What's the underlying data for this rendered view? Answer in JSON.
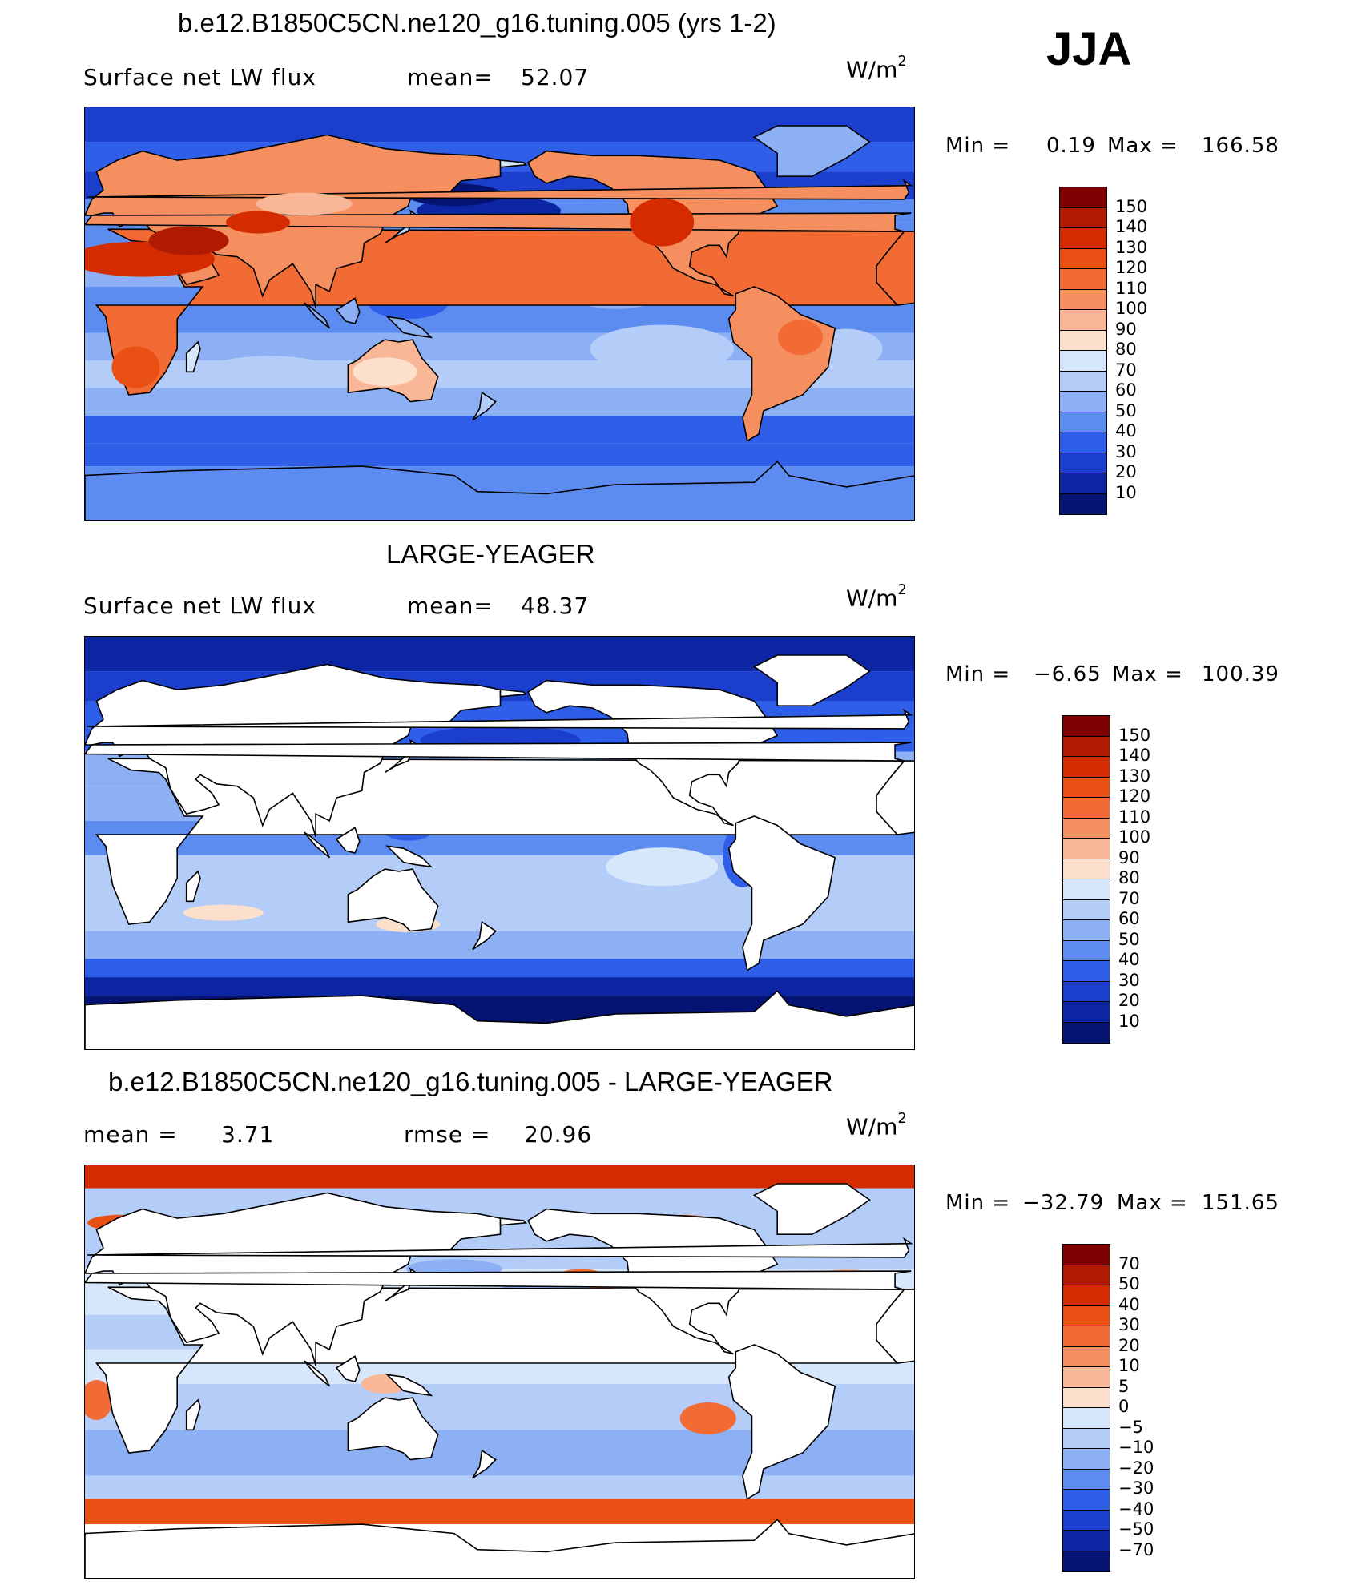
{
  "season": "JJA",
  "panels": [
    {
      "id": "panel-model",
      "title": "b.e12.B1850C5CN.ne120_g16.tuning.005 (yrs 1-2)",
      "left_label": "Surface net LW flux",
      "mid_label": "mean=",
      "mid_value": "52.07",
      "units_main": "W/m",
      "units_exp": "2",
      "min_label": "Min =",
      "min_value": "0.19",
      "max_label": "Max =",
      "max_value": "166.58",
      "land_fill": "data",
      "colorbar": {
        "labels": [
          "150",
          "140",
          "130",
          "120",
          "110",
          "100",
          "90",
          "80",
          "70",
          "60",
          "50",
          "40",
          "30",
          "20",
          "10"
        ],
        "colors": [
          "#7f0000",
          "#b01a00",
          "#d42c00",
          "#ea4f14",
          "#f26b34",
          "#f58f60",
          "#f9b797",
          "#fde0cc",
          "#d6e7fb",
          "#b3cdf8",
          "#8cb0f3",
          "#5c8cf0",
          "#2f5ee8",
          "#1b3fcc",
          "#0c25a3",
          "#051373"
        ]
      }
    },
    {
      "id": "panel-obs",
      "title": "LARGE-YEAGER",
      "left_label": "Surface net LW flux",
      "mid_label": "mean=",
      "mid_value": "48.37",
      "units_main": "W/m",
      "units_exp": "2",
      "min_label": "Min =",
      "min_value": "−6.65",
      "max_label": "Max =",
      "max_value": "100.39",
      "land_fill": "white",
      "colorbar": {
        "labels": [
          "150",
          "140",
          "130",
          "120",
          "110",
          "100",
          "90",
          "80",
          "70",
          "60",
          "50",
          "40",
          "30",
          "20",
          "10"
        ],
        "colors": [
          "#7f0000",
          "#b01a00",
          "#d42c00",
          "#ea4f14",
          "#f26b34",
          "#f58f60",
          "#f9b797",
          "#fde0cc",
          "#d6e7fb",
          "#b3cdf8",
          "#8cb0f3",
          "#5c8cf0",
          "#2f5ee8",
          "#1b3fcc",
          "#0c25a3",
          "#051373"
        ]
      }
    },
    {
      "id": "panel-diff",
      "title": "b.e12.B1850C5CN.ne120_g16.tuning.005 - LARGE-YEAGER",
      "left_label": "mean =",
      "left_value": "3.71",
      "mid_label": "rmse =",
      "mid_value": "20.96",
      "units_main": "W/m",
      "units_exp": "2",
      "min_label": "Min =",
      "min_value": "−32.79",
      "max_label": "Max =",
      "max_value": "151.65",
      "land_fill": "white",
      "colorbar": {
        "labels": [
          "70",
          "50",
          "40",
          "30",
          "20",
          "10",
          "5",
          "0",
          "−5",
          "−10",
          "−20",
          "−30",
          "−40",
          "−50",
          "−70"
        ],
        "colors": [
          "#7f0000",
          "#b01a00",
          "#d42c00",
          "#ea4f14",
          "#f26b34",
          "#f58f60",
          "#f9b797",
          "#fde0cc",
          "#d6e7fb",
          "#b3cdf8",
          "#8cb0f3",
          "#5c8cf0",
          "#2f5ee8",
          "#1b3fcc",
          "#0c25a3",
          "#051373"
        ]
      }
    }
  ]
}
